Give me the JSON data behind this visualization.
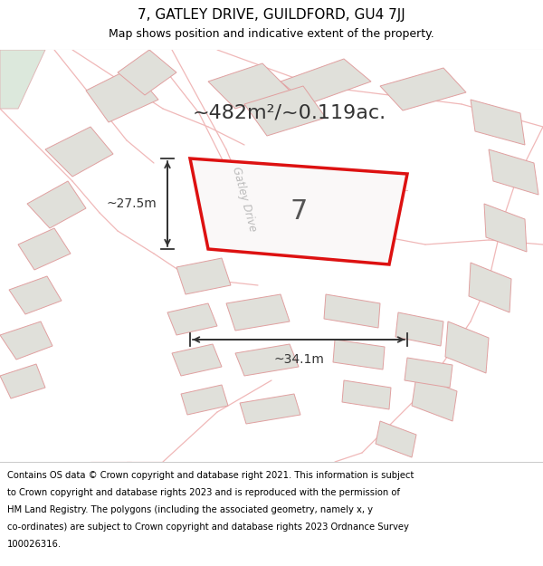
{
  "title": "7, GATLEY DRIVE, GUILDFORD, GU4 7JJ",
  "subtitle": "Map shows position and indicative extent of the property.",
  "area_label": "~482m²/~0.119ac.",
  "property_number": "7",
  "dim_width": "~34.1m",
  "dim_height": "~27.5m",
  "road_label": "Gatley Drive",
  "footer_lines": [
    "Contains OS data © Crown copyright and database right 2021. This information is subject",
    "to Crown copyright and database rights 2023 and is reproduced with the permission of",
    "HM Land Registry. The polygons (including the associated geometry, namely x, y",
    "co-ordinates) are subject to Crown copyright and database rights 2023 Ordnance Survey",
    "100026316."
  ],
  "map_bg": "#f9f9f7",
  "neighbor_fill": "#e0e0da",
  "neighbor_edge": "#e0a0a0",
  "road_line": "#f0b8b8",
  "green_fill": "#dce8dc",
  "green_edge": "#e0b8b8",
  "highlight_fill": "#faf8f8",
  "highlight_edge": "#dd1111",
  "dim_color": "#333333",
  "label_color": "#333333",
  "road_label_color": "#bbbbbb",
  "white": "#ffffff",
  "divider": "#cccccc"
}
